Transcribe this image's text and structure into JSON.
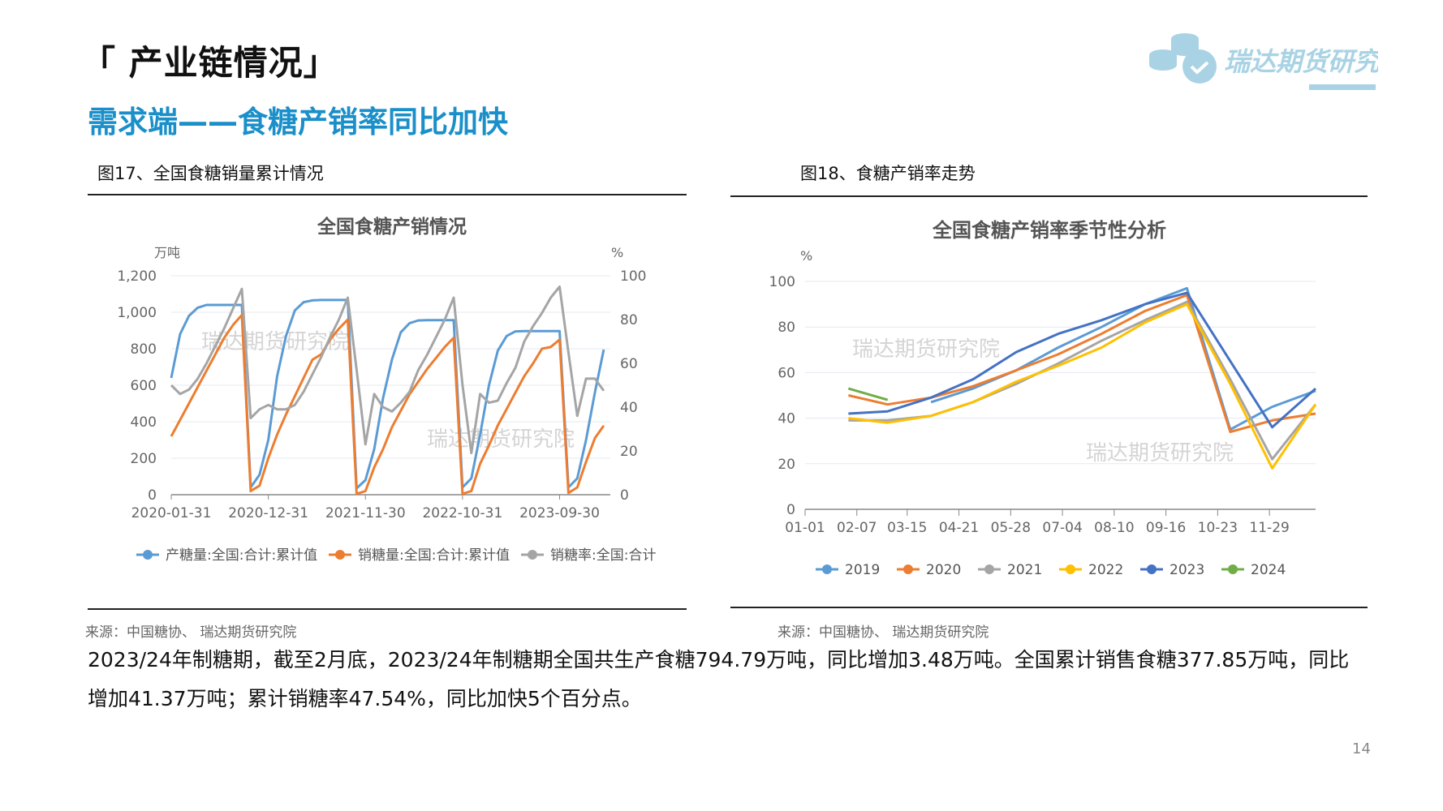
{
  "header": {
    "title": "「 产业链情况」",
    "subtitle": "需求端——食糖产销率同比加快",
    "logo_text": "瑞达期货研究院",
    "brand_color": "#a9d3e4"
  },
  "figures": [
    {
      "label": "图17、全国食糖销量累计情况",
      "source": "来源：中国糖协、 瑞达期货研究院"
    },
    {
      "label": "图18、食糖产销率走势",
      "source": "来源：中国糖协、 瑞达期货研究院"
    }
  ],
  "paragraph": [
    "2023/24年制糖期，截至2月底，2023/24年制糖期全国共生产食糖794.79万吨，同比增加3.48万吨。全国累计销售食糖377.85万吨，同比",
    "增加41.37万吨；累计销糖率47.54%，同比加快5个百分点。"
  ],
  "page_number": "14",
  "chart_data": [
    {
      "type": "line",
      "title": "全国食糖产销情况",
      "watermark": "瑞达期货研究院",
      "ylabel": "万吨",
      "y2label": "%",
      "ylim": [
        0,
        1200
      ],
      "yticks": [
        "0",
        "200",
        "400",
        "600",
        "800",
        "1,000",
        "1,200"
      ],
      "y2lim": [
        0,
        100
      ],
      "y2ticks": [
        "0",
        "20",
        "40",
        "60",
        "80",
        "100"
      ],
      "x_count": 50,
      "xticks": [
        {
          "i": 0,
          "label": "2020-01-31"
        },
        {
          "i": 11,
          "label": "2020-12-31"
        },
        {
          "i": 22,
          "label": "2021-11-30"
        },
        {
          "i": 33,
          "label": "2022-10-31"
        },
        {
          "i": 44,
          "label": "2023-09-30"
        }
      ],
      "legend": "bottom",
      "series": [
        {
          "name": "产糖量:全国:合计:累计值",
          "axis": "left",
          "color": "#5b9bd5",
          "values": [
            640,
            880,
            980,
            1025,
            1040,
            1040,
            1040,
            1040,
            1040,
            40,
            110,
            300,
            650,
            870,
            1010,
            1055,
            1065,
            1067,
            1067,
            1067,
            1067,
            35,
            80,
            250,
            530,
            740,
            890,
            940,
            955,
            957,
            957,
            957,
            957,
            40,
            90,
            330,
            600,
            790,
            870,
            895,
            897,
            897,
            897,
            897,
            897,
            40,
            90,
            300,
            560,
            795
          ]
        },
        {
          "name": "销糖量:全国:合计:累计值",
          "axis": "left",
          "color": "#ed7d31",
          "values": [
            320,
            410,
            500,
            590,
            680,
            770,
            860,
            930,
            985,
            20,
            50,
            200,
            330,
            440,
            540,
            640,
            740,
            770,
            850,
            910,
            960,
            5,
            20,
            150,
            250,
            370,
            460,
            550,
            620,
            690,
            750,
            810,
            860,
            5,
            20,
            170,
            270,
            380,
            470,
            560,
            650,
            720,
            800,
            810,
            850,
            10,
            40,
            180,
            310,
            378
          ]
        },
        {
          "name": "销糖率:全国:合计",
          "axis": "right",
          "color": "#a5a5a5",
          "values": [
            50,
            46,
            48,
            53,
            60,
            68,
            76,
            85,
            94,
            35,
            39,
            41,
            39,
            39,
            41,
            47,
            55,
            63,
            72,
            80,
            90,
            57,
            23,
            46,
            40,
            38,
            42,
            47,
            57,
            64,
            72,
            80,
            90,
            50,
            19,
            46,
            42,
            43,
            51,
            58,
            70,
            77,
            83,
            90,
            95,
            65,
            36,
            53,
            53,
            47.5
          ]
        }
      ]
    },
    {
      "type": "line",
      "title": "全国食糖产销率季节性分析",
      "watermark": "瑞达期货研究院",
      "ylabel": "%",
      "ylim": [
        0,
        100
      ],
      "yticks": [
        "0",
        "20",
        "40",
        "60",
        "80",
        "100"
      ],
      "xlim_days": [
        0,
        365
      ],
      "xticks": [
        {
          "d": 0,
          "label": "01-01"
        },
        {
          "d": 37,
          "label": "02-07"
        },
        {
          "d": 73,
          "label": "03-15"
        },
        {
          "d": 110,
          "label": "04-21"
        },
        {
          "d": 147,
          "label": "05-28"
        },
        {
          "d": 184,
          "label": "07-04"
        },
        {
          "d": 221,
          "label": "08-10"
        },
        {
          "d": 258,
          "label": "09-16"
        },
        {
          "d": 295,
          "label": "10-23"
        },
        {
          "d": 332,
          "label": "11-29"
        }
      ],
      "x_days": [
        31,
        59,
        90,
        120,
        151,
        181,
        212,
        243,
        273,
        304,
        334,
        365
      ],
      "legend": "bottom",
      "series": [
        {
          "name": "2019",
          "color": "#5b9bd5",
          "values": [
            null,
            null,
            47,
            53,
            61,
            71,
            80,
            90,
            97,
            35,
            45,
            52
          ]
        },
        {
          "name": "2020",
          "color": "#ed7d31",
          "values": [
            50,
            46,
            49,
            54,
            61,
            68,
            77,
            87,
            94,
            34,
            39,
            42
          ]
        },
        {
          "name": "2021",
          "color": "#a5a5a5",
          "values": [
            39,
            39,
            41,
            47,
            55,
            64,
            74,
            83,
            91,
            57,
            22,
            46
          ]
        },
        {
          "name": "2022",
          "color": "#ffc000",
          "values": [
            40,
            38,
            41,
            47,
            56,
            63,
            71,
            82,
            90,
            55,
            18,
            46
          ]
        },
        {
          "name": "2023",
          "color": "#4472c4",
          "values": [
            42,
            43,
            49,
            57,
            69,
            77,
            83,
            90,
            95,
            65,
            36,
            53
          ]
        },
        {
          "name": "2024",
          "color": "#70ad47",
          "values": [
            53,
            48
          ]
        }
      ]
    }
  ]
}
